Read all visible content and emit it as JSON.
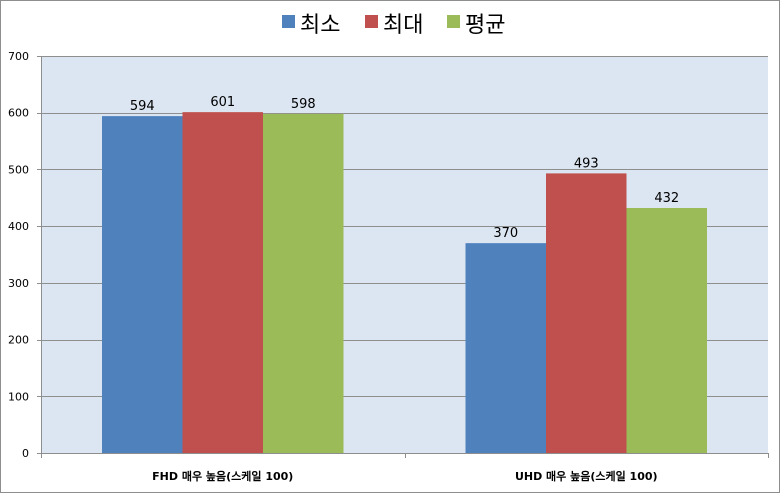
{
  "chart_data": {
    "type": "bar",
    "title": "",
    "xlabel": "",
    "ylabel": "",
    "categories": [
      "FHD 매우 높음(스케일 100)",
      "UHD 매우 높음(스케일 100)"
    ],
    "series": [
      {
        "name": "최소",
        "values": [
          594,
          370
        ],
        "color": "#4f81bd"
      },
      {
        "name": "최대",
        "values": [
          601,
          493
        ],
        "color": "#c0504d"
      },
      {
        "name": "평균",
        "values": [
          598,
          432
        ],
        "color": "#9bbb59"
      }
    ],
    "ylim": [
      0,
      700
    ],
    "yticks": [
      0,
      100,
      200,
      300,
      400,
      500,
      600,
      700
    ],
    "grid": true,
    "legend_position": "top",
    "plot_background": "#dce6f2",
    "gridline_color": "#8e8e8e"
  }
}
